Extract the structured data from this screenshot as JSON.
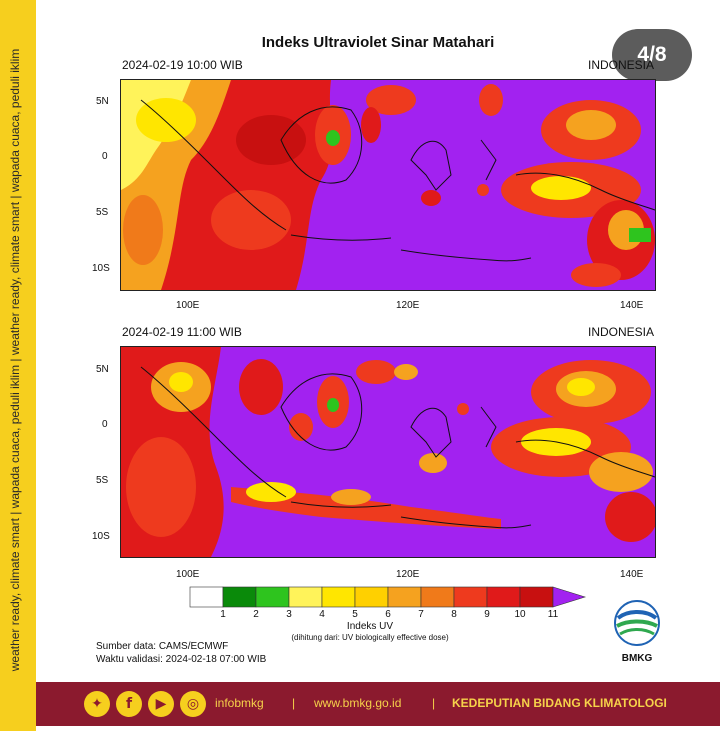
{
  "side_text": "weather ready, climate smart  |  wapada cuaca, peduli iklim  |  weather ready, climate smart  |  wapada cuaca, peduli iklim",
  "title": "Indeks Ultraviolet Sinar Matahari",
  "page_badge": "4/8",
  "maps": [
    {
      "datetime": "2024-02-19  10:00 WIB",
      "region": "INDONESIA"
    },
    {
      "datetime": "2024-02-19  11:00 WIB",
      "region": "INDONESIA"
    }
  ],
  "lat_ticks": [
    "5N",
    "0",
    "5S",
    "10S"
  ],
  "lon_ticks": [
    "100E",
    "120E",
    "140E"
  ],
  "colorbar": {
    "labels": [
      "1",
      "2",
      "3",
      "4",
      "5",
      "6",
      "7",
      "8",
      "9",
      "10",
      "11"
    ],
    "colors": [
      "#ffffff",
      "#0a8a0a",
      "#2ec41e",
      "#fff35a",
      "#ffe600",
      "#ffd000",
      "#f5a21f",
      "#f07a1a",
      "#ee3a1e",
      "#e01a1a",
      "#c81010",
      "#a222f0"
    ],
    "title": "Indeks UV",
    "subtitle": "(dihitung dari: UV biologically effective dose)"
  },
  "source": "Sumber data: CAMS/ECMWF",
  "validity": "Waktu validasi: 2024-02-18 07:00 WIB",
  "logo_text": "BMKG",
  "footer": {
    "social_icons": [
      "twitter-icon",
      "facebook-icon",
      "youtube-icon",
      "instagram-icon"
    ],
    "handle": "infobmkg",
    "sep1": "|",
    "website": "www.bmkg.go.id",
    "sep2": "|",
    "department": "KEDEPUTIAN BIDANG KLIMATOLOGI"
  }
}
